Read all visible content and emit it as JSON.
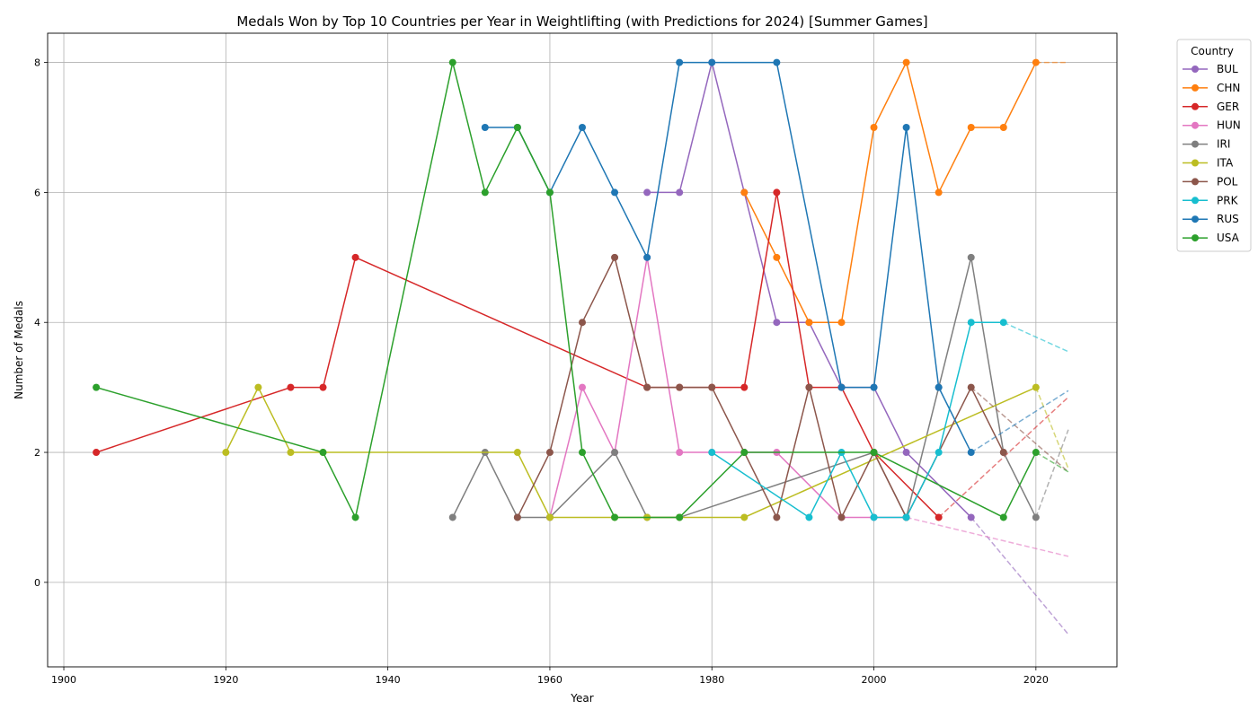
{
  "chart_data": {
    "type": "line",
    "title": "Medals Won by Top 10 Countries per Year in Weightlifting (with Predictions for 2024) [Summer Games]",
    "xlabel": "Year",
    "ylabel": "Number of Medals",
    "xlim": [
      1898,
      2030
    ],
    "ylim": [
      -1.3,
      8.45
    ],
    "xticks": [
      1900,
      1920,
      1940,
      1960,
      1980,
      2000,
      2020
    ],
    "yticks": [
      0,
      2,
      4,
      6,
      8
    ],
    "grid": true,
    "legend_title": "Country",
    "legend_position": "outside-right",
    "series": [
      {
        "name": "BUL",
        "color": "#9467bd",
        "points": [
          [
            1972,
            6
          ],
          [
            1976,
            6
          ],
          [
            1980,
            8
          ],
          [
            1984,
            6
          ],
          [
            1988,
            4
          ],
          [
            1992,
            4
          ],
          [
            1996,
            3
          ],
          [
            2000,
            3
          ],
          [
            2004,
            2
          ],
          [
            2012,
            1
          ]
        ],
        "prediction": [
          [
            2012,
            1
          ],
          [
            2024,
            -0.8
          ]
        ]
      },
      {
        "name": "CHN",
        "color": "#ff7f0e",
        "points": [
          [
            1984,
            6
          ],
          [
            1988,
            5
          ],
          [
            1992,
            4
          ],
          [
            1996,
            4
          ],
          [
            2000,
            7
          ],
          [
            2004,
            8
          ],
          [
            2008,
            6
          ],
          [
            2012,
            7
          ],
          [
            2016,
            7
          ],
          [
            2020,
            8
          ]
        ],
        "prediction": [
          [
            2020,
            8
          ],
          [
            2024,
            8
          ]
        ]
      },
      {
        "name": "GER",
        "color": "#d62728",
        "points": [
          [
            1904,
            2
          ],
          [
            1928,
            3
          ],
          [
            1932,
            3
          ],
          [
            1936,
            5
          ],
          [
            1972,
            3
          ],
          [
            1976,
            3
          ],
          [
            1980,
            3
          ],
          [
            1984,
            3
          ],
          [
            1988,
            6
          ],
          [
            1992,
            3
          ],
          [
            1996,
            3
          ],
          [
            2000,
            2
          ],
          [
            2008,
            1
          ]
        ],
        "prediction": [
          [
            2008,
            1
          ],
          [
            2024,
            2.85
          ]
        ]
      },
      {
        "name": "HUN",
        "color": "#e377c2",
        "points": [
          [
            1960,
            1
          ],
          [
            1964,
            3
          ],
          [
            1968,
            2
          ],
          [
            1972,
            5
          ],
          [
            1976,
            2
          ],
          [
            1980,
            2
          ],
          [
            1984,
            2
          ],
          [
            1988,
            2
          ],
          [
            1996,
            1
          ],
          [
            2000,
            1
          ],
          [
            2004,
            1
          ]
        ],
        "prediction": [
          [
            2004,
            1
          ],
          [
            2024,
            0.4
          ]
        ]
      },
      {
        "name": "IRI",
        "color": "#7f7f7f",
        "points": [
          [
            1948,
            1
          ],
          [
            1952,
            2
          ],
          [
            1956,
            1
          ],
          [
            1960,
            1
          ],
          [
            1968,
            2
          ],
          [
            1972,
            1
          ],
          [
            1976,
            1
          ],
          [
            2000,
            2
          ],
          [
            2004,
            1
          ],
          [
            2008,
            3
          ],
          [
            2012,
            5
          ],
          [
            2016,
            2
          ],
          [
            2020,
            1
          ]
        ],
        "prediction": [
          [
            2020,
            1
          ],
          [
            2024,
            2.35
          ]
        ]
      },
      {
        "name": "ITA",
        "color": "#bcbd22",
        "points": [
          [
            1920,
            2
          ],
          [
            1924,
            3
          ],
          [
            1928,
            2
          ],
          [
            1932,
            2
          ],
          [
            1956,
            2
          ],
          [
            1960,
            1
          ],
          [
            1968,
            1
          ],
          [
            1972,
            1
          ],
          [
            1976,
            1
          ],
          [
            1984,
            1
          ],
          [
            2020,
            3
          ]
        ],
        "prediction": [
          [
            2020,
            3
          ],
          [
            2024,
            1.75
          ]
        ]
      },
      {
        "name": "POL",
        "color": "#8c564b",
        "points": [
          [
            1956,
            1
          ],
          [
            1960,
            2
          ],
          [
            1964,
            4
          ],
          [
            1968,
            5
          ],
          [
            1972,
            3
          ],
          [
            1976,
            3
          ],
          [
            1980,
            3
          ],
          [
            1984,
            2
          ],
          [
            1988,
            1
          ],
          [
            1992,
            3
          ],
          [
            1996,
            1
          ],
          [
            2000,
            2
          ],
          [
            2004,
            1
          ],
          [
            2012,
            3
          ],
          [
            2016,
            2
          ]
        ],
        "prediction": [
          [
            2012,
            3
          ],
          [
            2024,
            1.7
          ]
        ]
      },
      {
        "name": "PRK",
        "color": "#17becf",
        "points": [
          [
            1980,
            2
          ],
          [
            1992,
            1
          ],
          [
            1996,
            2
          ],
          [
            2000,
            1
          ],
          [
            2004,
            1
          ],
          [
            2008,
            2
          ],
          [
            2012,
            4
          ],
          [
            2016,
            4
          ]
        ],
        "prediction": [
          [
            2016,
            4
          ],
          [
            2024,
            3.55
          ]
        ]
      },
      {
        "name": "RUS",
        "color": "#1f77b4",
        "points": [
          [
            1952,
            7
          ],
          [
            1956,
            7
          ],
          [
            1960,
            6
          ],
          [
            1964,
            7
          ],
          [
            1968,
            6
          ],
          [
            1972,
            5
          ],
          [
            1976,
            8
          ],
          [
            1980,
            8
          ],
          [
            1988,
            8
          ],
          [
            1996,
            3
          ],
          [
            2000,
            3
          ],
          [
            2004,
            7
          ],
          [
            2008,
            3
          ],
          [
            2012,
            2
          ]
        ],
        "prediction": [
          [
            2012,
            2
          ],
          [
            2024,
            2.95
          ]
        ]
      },
      {
        "name": "USA",
        "color": "#2ca02c",
        "points": [
          [
            1904,
            3
          ],
          [
            1932,
            2
          ],
          [
            1936,
            1
          ],
          [
            1948,
            8
          ],
          [
            1952,
            6
          ],
          [
            1956,
            7
          ],
          [
            1960,
            6
          ],
          [
            1964,
            2
          ],
          [
            1968,
            1
          ],
          [
            1976,
            1
          ],
          [
            1984,
            2
          ],
          [
            2000,
            2
          ],
          [
            2016,
            1
          ],
          [
            2020,
            2
          ]
        ],
        "prediction": [
          [
            2020,
            2
          ],
          [
            2024,
            1.7
          ]
        ]
      }
    ]
  }
}
